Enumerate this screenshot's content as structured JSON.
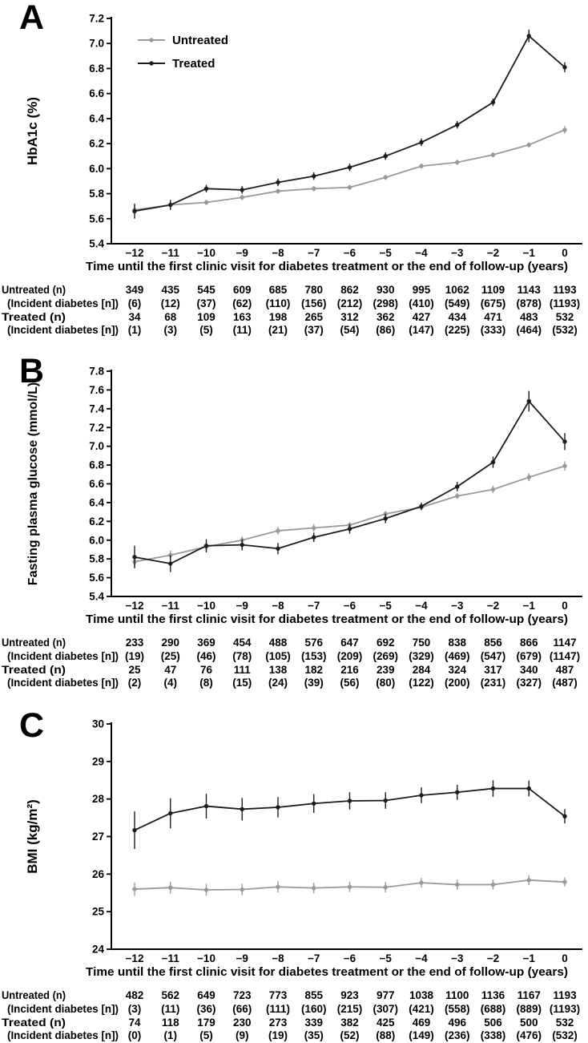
{
  "figure": {
    "background": "#ffffff",
    "x_axis_title": "Time until the first clinic visit for diabetes treatment or the end of follow-up  (years)",
    "x_tick_labels": [
      "−12",
      "−11",
      "−10",
      "−9",
      "−8",
      "−7",
      "−6",
      "−5",
      "−4",
      "−3",
      "−2",
      "−1",
      "0"
    ],
    "legend_entries": [
      "Untreated",
      "Treated"
    ],
    "colors": {
      "untreated": "#999999",
      "treated": "#1c1c1c",
      "axis": "#000000"
    }
  },
  "chart_data": [
    {
      "panel": "A",
      "type": "line",
      "ylabel": "HbA1c (%)",
      "xlabel": "Time until the first clinic visit for diabetes treatment or the end of follow-up  (years)",
      "ylim": [
        5.4,
        7.2
      ],
      "ytick_step": 0.2,
      "ytick_decimals": 1,
      "x": [
        -12,
        -11,
        -10,
        -9,
        -8,
        -7,
        -6,
        -5,
        -4,
        -3,
        -2,
        -1,
        0
      ],
      "show_legend": true,
      "legend_position": "top-left",
      "grid": false,
      "series": [
        {
          "name": "Untreated",
          "color": "#999999",
          "values": [
            5.67,
            5.71,
            5.73,
            5.77,
            5.82,
            5.84,
            5.85,
            5.93,
            6.02,
            6.05,
            6.11,
            6.19,
            6.31
          ],
          "errors": [
            0.04,
            0.03,
            0.02,
            0.02,
            0.02,
            0.02,
            0.02,
            0.02,
            0.02,
            0.02,
            0.02,
            0.02,
            0.03
          ]
        },
        {
          "name": "Treated",
          "color": "#1c1c1c",
          "values": [
            5.66,
            5.71,
            5.84,
            5.83,
            5.89,
            5.94,
            6.01,
            6.1,
            6.21,
            6.35,
            6.53,
            7.06,
            6.81
          ],
          "errors": [
            0.06,
            0.04,
            0.03,
            0.03,
            0.03,
            0.03,
            0.03,
            0.03,
            0.03,
            0.03,
            0.03,
            0.05,
            0.04
          ]
        }
      ],
      "table": {
        "rows": [
          {
            "label": "Untreated (n)",
            "indent": false,
            "values": [
              "349",
              "435",
              "545",
              "609",
              "685",
              "780",
              "862",
              "930",
              "995",
              "1062",
              "1109",
              "1143",
              "1193"
            ]
          },
          {
            "label": "(Incident diabetes [n])",
            "indent": true,
            "values": [
              "(6)",
              "(12)",
              "(37)",
              "(62)",
              "(110)",
              "(156)",
              "(212)",
              "(298)",
              "(410)",
              "(549)",
              "(675)",
              "(878)",
              "(1193)"
            ]
          },
          {
            "label": "Treated (n)",
            "indent": false,
            "values": [
              "34",
              "68",
              "109",
              "163",
              "198",
              "265",
              "312",
              "362",
              "427",
              "434",
              "471",
              "483",
              "532"
            ]
          },
          {
            "label": "(Incident diabetes [n])",
            "indent": true,
            "values": [
              "(1)",
              "(3)",
              "(5)",
              "(11)",
              "(21)",
              "(37)",
              "(54)",
              "(86)",
              "(147)",
              "(225)",
              "(333)",
              "(464)",
              "(532)"
            ]
          }
        ]
      }
    },
    {
      "panel": "B",
      "type": "line",
      "ylabel": "Fasting plasma glucose (mmol/L)",
      "xlabel": "Time until the first clinic visit for diabetes treatment or the end of follow-up  (years)",
      "ylim": [
        5.4,
        7.8
      ],
      "ytick_step": 0.2,
      "ytick_decimals": 1,
      "x": [
        -12,
        -11,
        -10,
        -9,
        -8,
        -7,
        -6,
        -5,
        -4,
        -3,
        -2,
        -1,
        0
      ],
      "show_legend": false,
      "grid": false,
      "series": [
        {
          "name": "Untreated",
          "color": "#999999",
          "values": [
            5.77,
            5.84,
            5.93,
            6.0,
            6.1,
            6.13,
            6.16,
            6.28,
            6.35,
            6.47,
            6.54,
            6.67,
            6.79
          ],
          "errors": [
            0.06,
            0.05,
            0.05,
            0.04,
            0.04,
            0.04,
            0.03,
            0.03,
            0.03,
            0.03,
            0.04,
            0.04,
            0.05
          ]
        },
        {
          "name": "Treated",
          "color": "#1c1c1c",
          "values": [
            5.82,
            5.75,
            5.94,
            5.95,
            5.91,
            6.03,
            6.12,
            6.23,
            6.36,
            6.57,
            6.83,
            7.48,
            7.05
          ],
          "errors": [
            0.12,
            0.09,
            0.07,
            0.06,
            0.06,
            0.05,
            0.05,
            0.05,
            0.04,
            0.05,
            0.06,
            0.11,
            0.09
          ]
        }
      ],
      "table": {
        "rows": [
          {
            "label": "Untreated (n)",
            "indent": false,
            "values": [
              "233",
              "290",
              "369",
              "454",
              "488",
              "576",
              "647",
              "692",
              "750",
              "838",
              "856",
              "866",
              "1147"
            ]
          },
          {
            "label": "(Incident diabetes [n])",
            "indent": true,
            "values": [
              "(19)",
              "(25)",
              "(46)",
              "(78)",
              "(105)",
              "(153)",
              "(209)",
              "(269)",
              "(329)",
              "(469)",
              "(547)",
              "(679)",
              "(1147)"
            ]
          },
          {
            "label": "Treated (n)",
            "indent": false,
            "values": [
              "25",
              "47",
              "76",
              "111",
              "138",
              "182",
              "216",
              "239",
              "284",
              "324",
              "317",
              "340",
              "487"
            ]
          },
          {
            "label": "(Incident diabetes [n])",
            "indent": true,
            "values": [
              "(2)",
              "(4)",
              "(8)",
              "(15)",
              "(24)",
              "(39)",
              "(56)",
              "(80)",
              "(122)",
              "(200)",
              "(231)",
              "(327)",
              "(487)"
            ]
          }
        ]
      }
    },
    {
      "panel": "C",
      "type": "line",
      "ylabel": "BMI (kg/m²)",
      "xlabel": "Time until the first clinic visit for diabetes treatment or the end of follow-up  (years)",
      "ylim": [
        24,
        30
      ],
      "ytick_step": 1,
      "ytick_decimals": 0,
      "x": [
        -12,
        -11,
        -10,
        -9,
        -8,
        -7,
        -6,
        -5,
        -4,
        -3,
        -2,
        -1,
        0
      ],
      "show_legend": false,
      "grid": false,
      "series": [
        {
          "name": "Untreated",
          "color": "#999999",
          "values": [
            25.6,
            25.64,
            25.58,
            25.59,
            25.66,
            25.63,
            25.66,
            25.65,
            25.77,
            25.72,
            25.72,
            25.84,
            25.79
          ],
          "errors": [
            0.18,
            0.16,
            0.16,
            0.15,
            0.15,
            0.14,
            0.14,
            0.14,
            0.13,
            0.13,
            0.13,
            0.13,
            0.12
          ]
        },
        {
          "name": "Treated",
          "color": "#1c1c1c",
          "values": [
            27.17,
            27.62,
            27.81,
            27.73,
            27.78,
            27.88,
            27.95,
            27.96,
            28.1,
            28.18,
            28.28,
            28.28,
            27.54
          ],
          "errors": [
            0.5,
            0.4,
            0.33,
            0.3,
            0.27,
            0.25,
            0.23,
            0.22,
            0.21,
            0.2,
            0.22,
            0.21,
            0.19
          ]
        }
      ],
      "table": {
        "rows": [
          {
            "label": "Untreated (n)",
            "indent": false,
            "values": [
              "482",
              "562",
              "649",
              "723",
              "773",
              "855",
              "923",
              "977",
              "1038",
              "1100",
              "1136",
              "1167",
              "1193"
            ]
          },
          {
            "label": "(Incident diabetes [n])",
            "indent": true,
            "values": [
              "(3)",
              "(11)",
              "(36)",
              "(66)",
              "(111)",
              "(160)",
              "(215)",
              "(307)",
              "(421)",
              "(558)",
              "(688)",
              "(889)",
              "(1193)"
            ]
          },
          {
            "label": "Treated (n)",
            "indent": false,
            "values": [
              "74",
              "118",
              "179",
              "230",
              "273",
              "339",
              "382",
              "425",
              "469",
              "496",
              "506",
              "500",
              "532"
            ]
          },
          {
            "label": "(Incident diabetes [n])",
            "indent": true,
            "values": [
              "(0)",
              "(1)",
              "(5)",
              "(9)",
              "(19)",
              "(35)",
              "(52)",
              "(88)",
              "(149)",
              "(236)",
              "(338)",
              "(476)",
              "(532)"
            ]
          }
        ]
      }
    }
  ]
}
